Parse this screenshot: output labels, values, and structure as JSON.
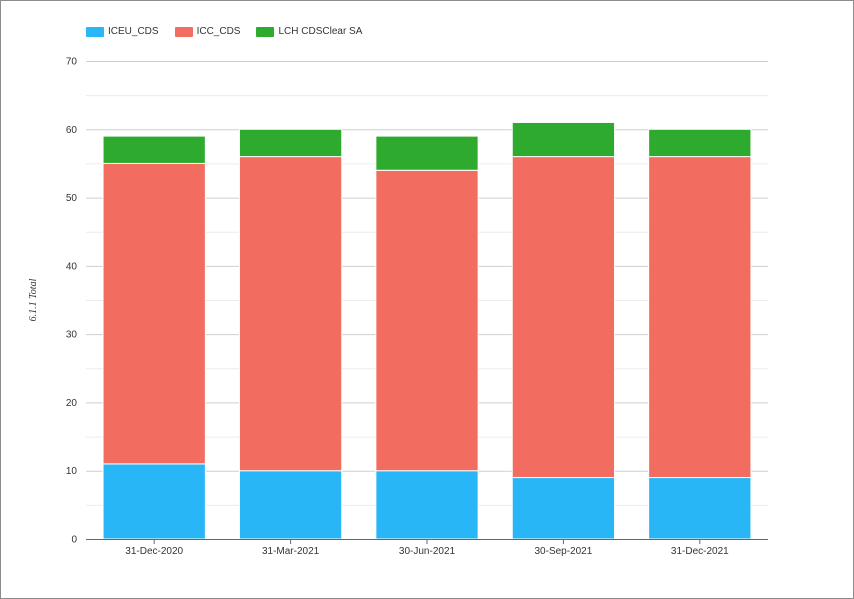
{
  "chart_data": {
    "type": "bar",
    "stacked": true,
    "categories": [
      "31-Dec-2020",
      "31-Mar-2021",
      "30-Jun-2021",
      "30-Sep-2021",
      "31-Dec-2021"
    ],
    "series": [
      {
        "name": "ICEU_CDS",
        "color": "#29b6f6",
        "values": [
          11,
          10,
          10,
          9,
          9
        ]
      },
      {
        "name": "ICC_CDS",
        "color": "#f26d60",
        "values": [
          44,
          46,
          44,
          47,
          47
        ]
      },
      {
        "name": "LCH CDSClear SA",
        "color": "#2eaa2e",
        "values": [
          4,
          4,
          5,
          5,
          4
        ]
      }
    ],
    "title": "",
    "xlabel": "",
    "ylabel": "6.1.1 Total",
    "ylim": [
      0,
      70
    ],
    "yticks": [
      0,
      10,
      20,
      30,
      40,
      50,
      60,
      70
    ],
    "grid": true,
    "legend_position": "top-left"
  }
}
